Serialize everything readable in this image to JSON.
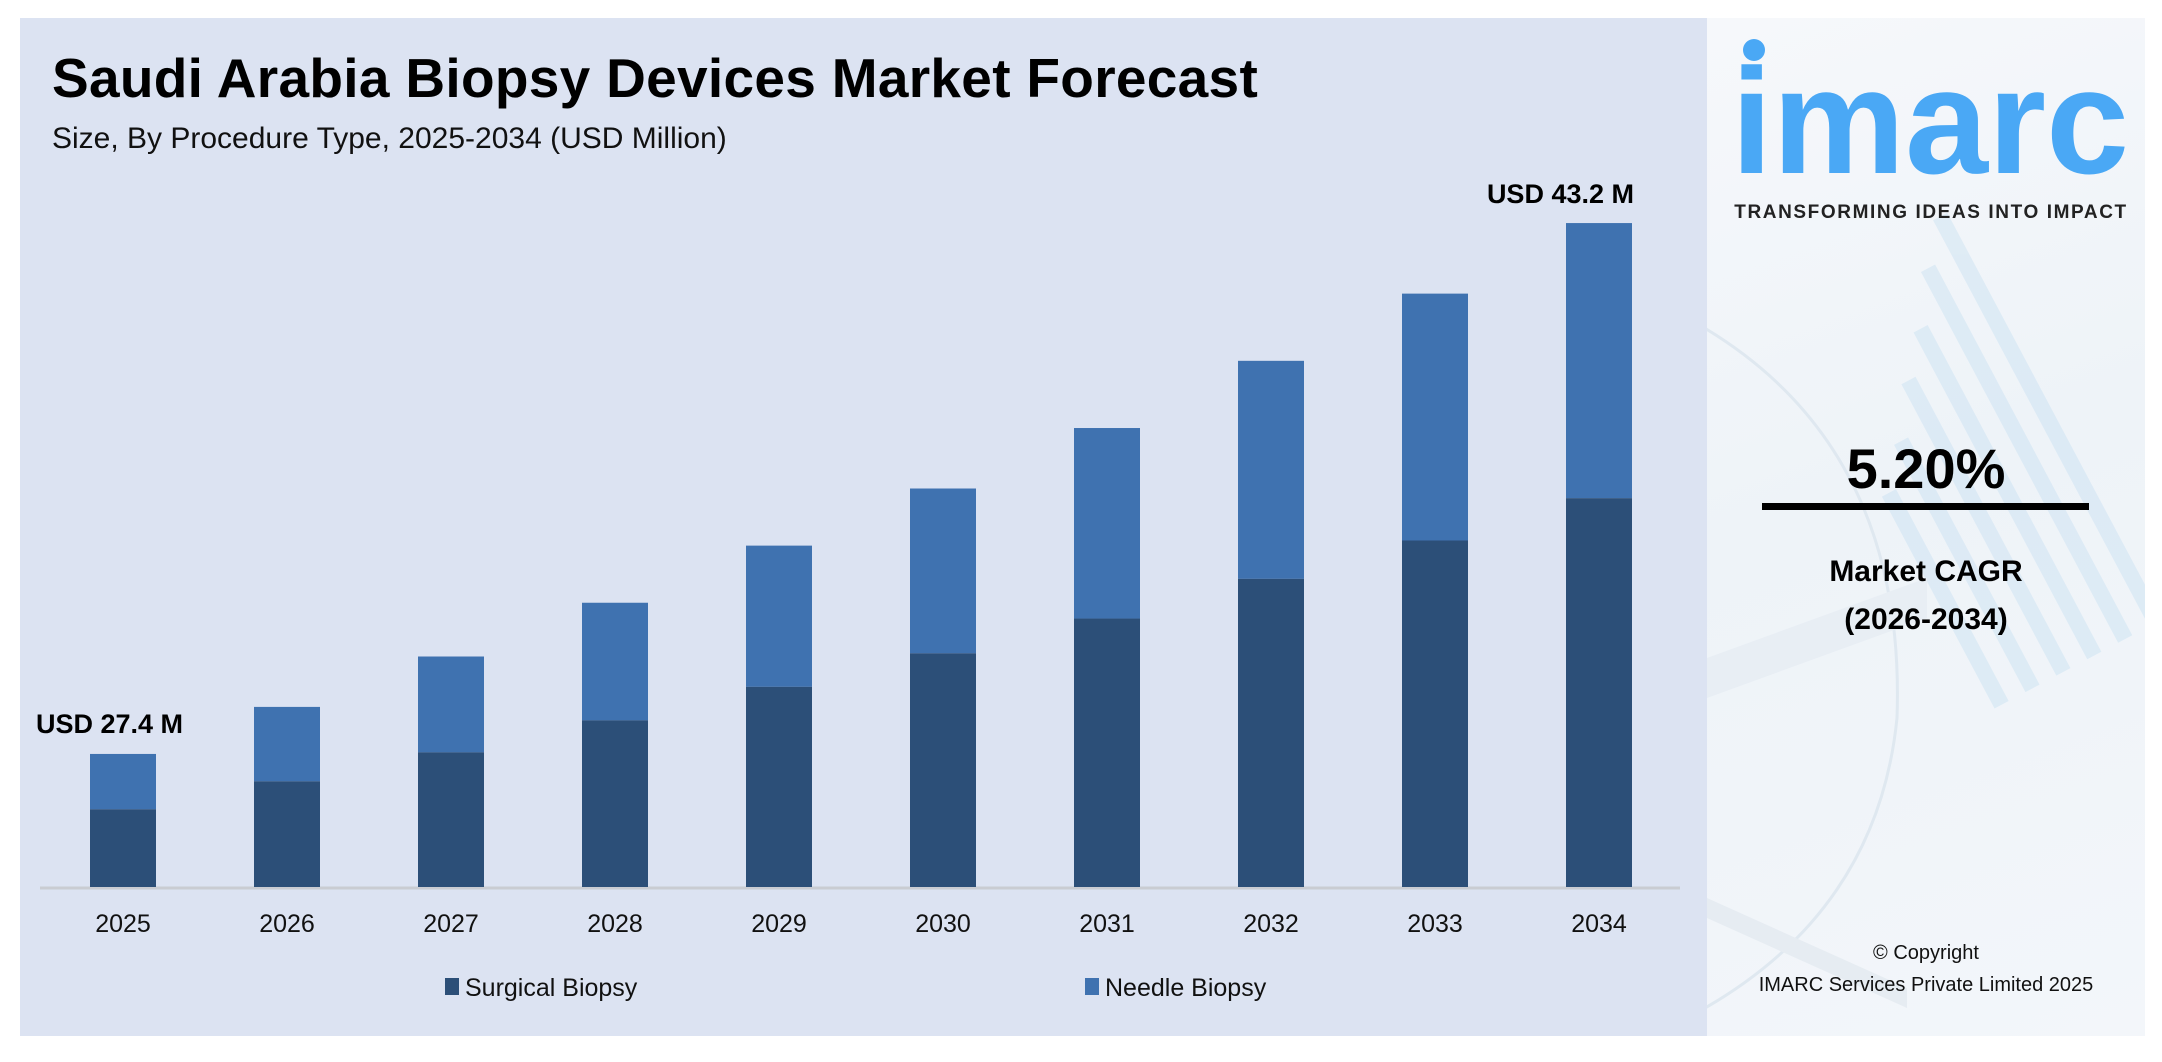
{
  "header": {
    "title": "Saudi Arabia Biopsy Devices Market Forecast",
    "subtitle": "Size, By Procedure Type, 2025-2034 (USD Million)"
  },
  "chart_data": {
    "type": "bar",
    "stacked": true,
    "categories": [
      "2025",
      "2026",
      "2027",
      "2028",
      "2029",
      "2030",
      "2031",
      "2032",
      "2033",
      "2034"
    ],
    "series": [
      {
        "name": "Surgical Biopsy",
        "color": "#2c4f78",
        "values": [
          16.0,
          16.9,
          17.7,
          18.7,
          19.7,
          20.7,
          21.7,
          22.9,
          24.0,
          25.3
        ]
      },
      {
        "name": "Needle Biopsy",
        "color": "#3f72b0",
        "values": [
          11.4,
          11.9,
          12.6,
          13.2,
          13.9,
          14.6,
          15.4,
          16.2,
          17.1,
          17.9
        ]
      }
    ],
    "annotations": [
      {
        "category": "2025",
        "text": "USD 27.4 M"
      },
      {
        "category": "2034",
        "text": "USD 43.2 M"
      }
    ],
    "grid": false,
    "legend": "bottom",
    "background": "#dce3f2"
  },
  "sidebar": {
    "logo_text": "imarc",
    "tagline": "TRANSFORMING IDEAS INTO IMPACT",
    "cagr_value": "5.20%",
    "cagr_label": "Market CAGR",
    "cagr_period": "(2026-2034)",
    "copyright_line1": "© Copyright",
    "copyright_line2": "IMARC Services Private Limited 2025",
    "brand_color": "#4aa8f5"
  }
}
